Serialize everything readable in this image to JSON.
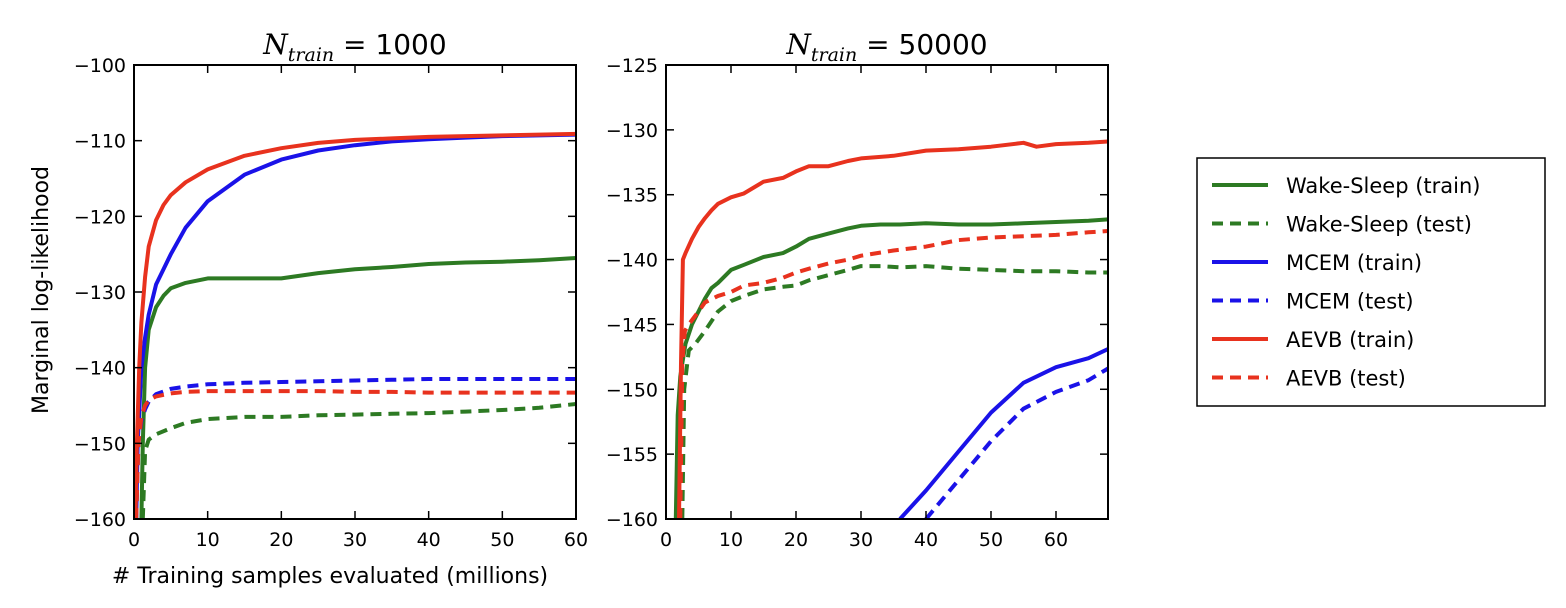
{
  "chart_data": {
    "type": "line",
    "xlabel": "# Training samples evaluated (millions)",
    "ylabel": "Marginal log-likelihood",
    "legend": {
      "placement": "right",
      "entries": [
        {
          "label": "Wake-Sleep (train)",
          "color": "#2d7a23",
          "style": "solid"
        },
        {
          "label": "Wake-Sleep (test)",
          "color": "#2d7a23",
          "style": "dashed"
        },
        {
          "label": "MCEM (train)",
          "color": "#1a12e8",
          "style": "solid"
        },
        {
          "label": "MCEM (test)",
          "color": "#1a12e8",
          "style": "dashed"
        },
        {
          "label": "AEVB (train)",
          "color": "#e8321e",
          "style": "solid"
        },
        {
          "label": "AEVB (test)",
          "color": "#e8321e",
          "style": "dashed"
        }
      ]
    },
    "panels": [
      {
        "title_var": "N",
        "title_sub": "train",
        "title_value": " = 1000",
        "xlim": [
          0,
          60
        ],
        "ylim": [
          -160,
          -100
        ],
        "xticks": [
          0,
          10,
          20,
          30,
          40,
          50,
          60
        ],
        "yticks": [
          -100,
          -110,
          -120,
          -130,
          -140,
          -150,
          -160
        ],
        "series": [
          {
            "name": "Wake-Sleep (train)",
            "color": "#2d7a23",
            "style": "solid",
            "x": [
              1.0,
              1.2,
              1.5,
              2,
              3,
              4,
              5,
              7,
              10,
              15,
              20,
              25,
              30,
              35,
              40,
              45,
              50,
              55,
              60
            ],
            "y": [
              -160,
              -150,
              -140,
              -135,
              -132,
              -130.5,
              -129.5,
              -128.8,
              -128.2,
              -128.2,
              -128.2,
              -127.5,
              -127.0,
              -126.7,
              -126.3,
              -126.1,
              -126.0,
              -125.8,
              -125.5
            ]
          },
          {
            "name": "Wake-Sleep (test)",
            "color": "#2d7a23",
            "style": "dashed",
            "x": [
              1.2,
              1.5,
              2,
              3,
              5,
              7,
              10,
              15,
              20,
              25,
              30,
              35,
              40,
              45,
              50,
              55,
              60
            ],
            "y": [
              -160,
              -151,
              -149.5,
              -148.8,
              -148,
              -147.3,
              -146.8,
              -146.5,
              -146.5,
              -146.3,
              -146.2,
              -146.1,
              -146.0,
              -145.8,
              -145.6,
              -145.3,
              -144.8
            ]
          },
          {
            "name": "MCEM (train)",
            "color": "#1a12e8",
            "style": "solid",
            "x": [
              0.3,
              0.5,
              1,
              1.5,
              2,
              3,
              4,
              5,
              7,
              10,
              15,
              20,
              25,
              30,
              35,
              40,
              45,
              50,
              55,
              60
            ],
            "y": [
              -160,
              -150,
              -140,
              -136,
              -133,
              -129,
              -127,
              -125,
              -121.5,
              -118,
              -114.5,
              -112.5,
              -111.3,
              -110.6,
              -110.1,
              -109.8,
              -109.6,
              -109.4,
              -109.3,
              -109.2
            ]
          },
          {
            "name": "MCEM (test)",
            "color": "#1a12e8",
            "style": "dashed",
            "x": [
              0.3,
              0.6,
              1,
              1.5,
              2,
              3,
              5,
              7,
              10,
              15,
              20,
              25,
              30,
              35,
              40,
              45,
              50,
              55,
              60
            ],
            "y": [
              -160,
              -150,
              -147,
              -145.5,
              -144.5,
              -143.5,
              -142.8,
              -142.5,
              -142.2,
              -142.0,
              -141.9,
              -141.8,
              -141.7,
              -141.6,
              -141.5,
              -141.5,
              -141.5,
              -141.5,
              -141.5
            ]
          },
          {
            "name": "AEVB (train)",
            "color": "#e8321e",
            "style": "solid",
            "x": [
              0.2,
              0.4,
              0.7,
              1,
              1.5,
              2,
              3,
              4,
              5,
              7,
              10,
              15,
              20,
              25,
              30,
              35,
              40,
              45,
              50,
              55,
              60
            ],
            "y": [
              -160,
              -150,
              -140,
              -134,
              -128,
              -124,
              -120.5,
              -118.5,
              -117.2,
              -115.5,
              -113.8,
              -112.0,
              -111.0,
              -110.3,
              -109.9,
              -109.7,
              -109.5,
              -109.4,
              -109.3,
              -109.2,
              -109.1
            ]
          },
          {
            "name": "AEVB (test)",
            "color": "#e8321e",
            "style": "dashed",
            "x": [
              0.3,
              0.6,
              1,
              1.5,
              2,
              3,
              5,
              7,
              10,
              15,
              20,
              25,
              30,
              35,
              40,
              45,
              50,
              55,
              60
            ],
            "y": [
              -160,
              -150,
              -146.5,
              -145,
              -144.3,
              -143.8,
              -143.4,
              -143.2,
              -143.1,
              -143.1,
              -143.1,
              -143.1,
              -143.2,
              -143.2,
              -143.3,
              -143.3,
              -143.3,
              -143.3,
              -143.3
            ]
          }
        ]
      },
      {
        "title_var": "N",
        "title_sub": "train",
        "title_value": " = 50000",
        "xlim": [
          0,
          68
        ],
        "ylim": [
          -160,
          -125
        ],
        "xticks": [
          0,
          10,
          20,
          30,
          40,
          50,
          60
        ],
        "yticks": [
          -125,
          -130,
          -135,
          -140,
          -145,
          -150,
          -155,
          -160
        ],
        "series": [
          {
            "name": "Wake-Sleep (train)",
            "color": "#2d7a23",
            "style": "solid",
            "x": [
              1.5,
              1.8,
              2.2,
              2.5,
              3,
              4,
              5,
              6,
              7,
              8,
              10,
              12,
              15,
              18,
              20,
              22,
              25,
              28,
              30,
              33,
              36,
              40,
              45,
              50,
              55,
              60,
              65,
              68
            ],
            "y": [
              -160,
              -152,
              -149,
              -148,
              -146.5,
              -145,
              -144,
              -143,
              -142.2,
              -141.8,
              -140.8,
              -140.4,
              -139.8,
              -139.5,
              -139.0,
              -138.4,
              -138.0,
              -137.6,
              -137.4,
              -137.3,
              -137.3,
              -137.2,
              -137.3,
              -137.3,
              -137.2,
              -137.1,
              -137.0,
              -136.9
            ]
          },
          {
            "name": "Wake-Sleep (test)",
            "color": "#2d7a23",
            "style": "dashed",
            "x": [
              2.5,
              2.8,
              3.5,
              4.5,
              6,
              8,
              10,
              12,
              15,
              18,
              20,
              22,
              25,
              28,
              30,
              33,
              36,
              40,
              45,
              50,
              55,
              60,
              65,
              68
            ],
            "y": [
              -160,
              -150,
              -147,
              -146.5,
              -145.5,
              -144,
              -143.2,
              -142.8,
              -142.3,
              -142.1,
              -142.0,
              -141.6,
              -141.2,
              -140.8,
              -140.5,
              -140.5,
              -140.6,
              -140.5,
              -140.7,
              -140.8,
              -140.9,
              -140.9,
              -141.0,
              -141.0
            ]
          },
          {
            "name": "MCEM (train)",
            "color": "#1a12e8",
            "style": "solid",
            "x": [
              36,
              40,
              45,
              50,
              55,
              60,
              65,
              68
            ],
            "y": [
              -160,
              -157.8,
              -154.8,
              -151.8,
              -149.5,
              -148.3,
              -147.6,
              -146.9
            ]
          },
          {
            "name": "MCEM (test)",
            "color": "#1a12e8",
            "style": "dashed",
            "x": [
              40,
              45,
              50,
              55,
              60,
              65,
              68
            ],
            "y": [
              -160,
              -157.0,
              -154.0,
              -151.5,
              -150.2,
              -149.3,
              -148.4
            ]
          },
          {
            "name": "AEVB (train)",
            "color": "#e8321e",
            "style": "solid",
            "x": [
              2.0,
              2.3,
              2.6,
              3,
              4,
              5,
              6,
              7,
              8,
              10,
              12,
              15,
              18,
              20,
              22,
              25,
              28,
              30,
              35,
              40,
              45,
              50,
              55,
              57,
              60,
              65,
              68
            ],
            "y": [
              -160,
              -148,
              -140,
              -139.5,
              -138.4,
              -137.5,
              -136.8,
              -136.2,
              -135.7,
              -135.2,
              -134.9,
              -134.0,
              -133.7,
              -133.2,
              -132.8,
              -132.8,
              -132.4,
              -132.2,
              -132.0,
              -131.6,
              -131.5,
              -131.3,
              -131.0,
              -131.3,
              -131.1,
              -131.0,
              -130.9
            ]
          },
          {
            "name": "AEVB (test)",
            "color": "#e8321e",
            "style": "dashed",
            "x": [
              2.2,
              2.5,
              2.9,
              3.5,
              5,
              6,
              8,
              10,
              12,
              15,
              18,
              20,
              22,
              25,
              28,
              30,
              35,
              40,
              45,
              50,
              55,
              60,
              65,
              68
            ],
            "y": [
              -160,
              -148,
              -145.5,
              -145,
              -144,
              -143.3,
              -142.8,
              -142.5,
              -142.0,
              -141.8,
              -141.4,
              -141.0,
              -140.7,
              -140.3,
              -140.0,
              -139.7,
              -139.3,
              -139.0,
              -138.5,
              -138.3,
              -138.2,
              -138.1,
              -137.9,
              -137.8
            ]
          }
        ]
      }
    ]
  }
}
